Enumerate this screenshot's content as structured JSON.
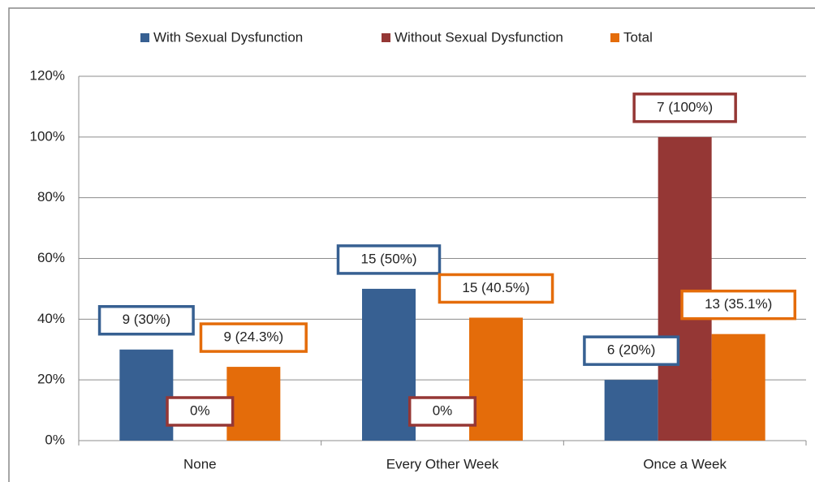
{
  "chart_data": {
    "type": "bar",
    "categories": [
      "None",
      "Every Other Week",
      "Once a Week"
    ],
    "series": [
      {
        "name": "With Sexual Dysfunction",
        "color": "#376092",
        "values": [
          30,
          50,
          20
        ],
        "value_labels": [
          "9 (30%)",
          "15 (50%)",
          "6 (20%)"
        ]
      },
      {
        "name": "Without Sexual Dysfunction",
        "color": "#953735",
        "values": [
          0,
          0,
          100
        ],
        "value_labels": [
          "0%",
          "0%",
          "7 (100%)"
        ]
      },
      {
        "name": "Total",
        "color": "#e46c0a",
        "values": [
          24.3,
          40.5,
          35.1
        ],
        "value_labels": [
          "9 (24.3%)",
          "15 (40.5%)",
          "13 (35.1%)"
        ]
      }
    ],
    "ylim": [
      0,
      120
    ],
    "yticks": [
      {
        "value": 0,
        "label": "0%"
      },
      {
        "value": 20,
        "label": "20%"
      },
      {
        "value": 40,
        "label": "40%"
      },
      {
        "value": 60,
        "label": "60%"
      },
      {
        "value": 80,
        "label": "80%"
      },
      {
        "value": 100,
        "label": "100%"
      },
      {
        "value": 120,
        "label": "120%"
      }
    ],
    "grid": true,
    "legend": "top"
  }
}
